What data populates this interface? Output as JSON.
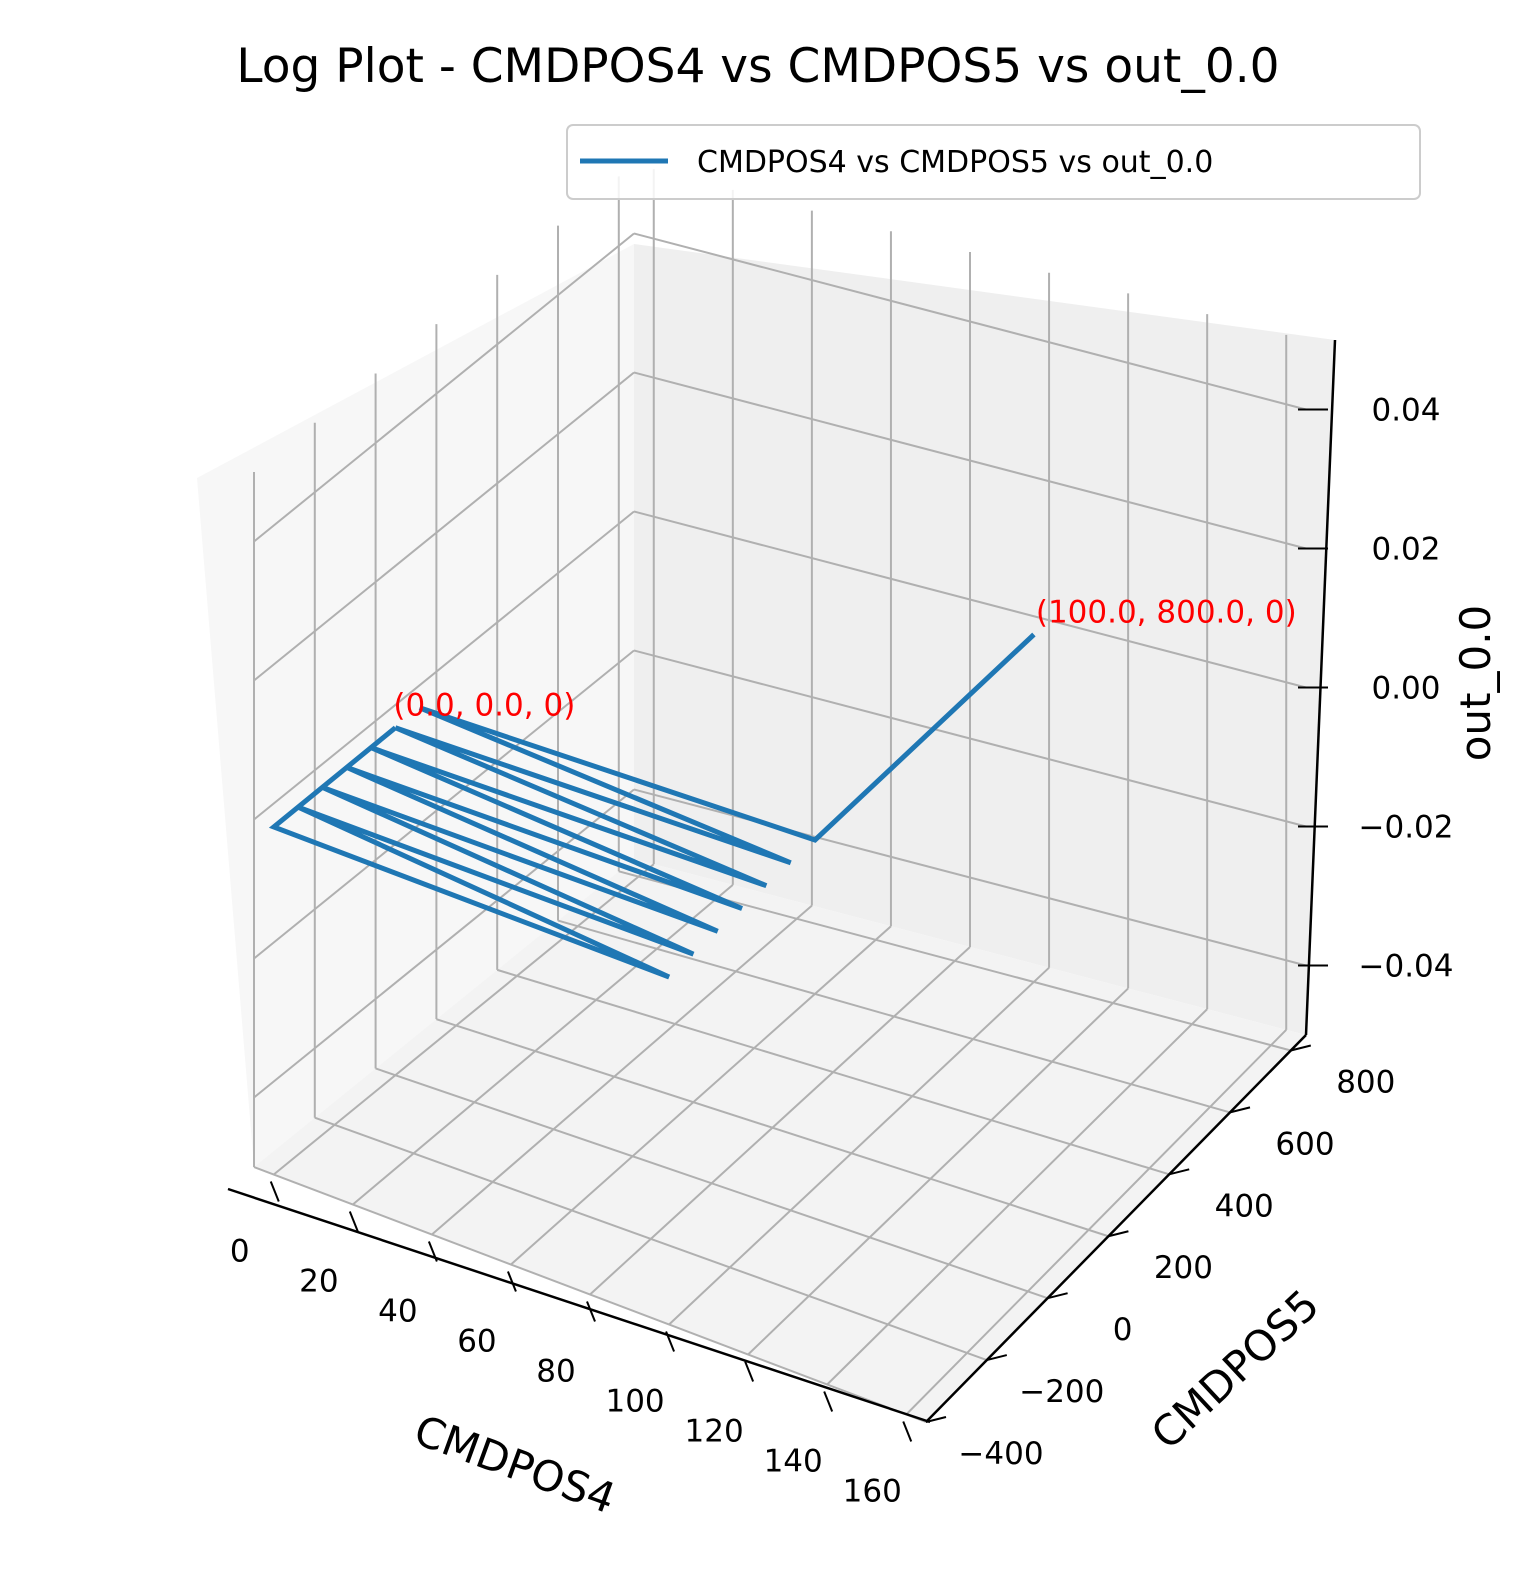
{
  "chart_data": {
    "type": "line3d",
    "title": "Log Plot - CMDPOS4 vs CMDPOS5 vs out_0.0",
    "xlabel": "CMDPOS4",
    "ylabel": "CMDPOS5",
    "zlabel": "out_0.0",
    "xlim": [
      -5,
      165
    ],
    "ylim": [
      -400,
      850
    ],
    "zlim": [
      -0.05,
      0.05
    ],
    "xticks": [
      0,
      20,
      40,
      60,
      80,
      100,
      120,
      140,
      160
    ],
    "xtick_labels": [
      "0",
      "20",
      "40",
      "60",
      "80",
      "100",
      "120",
      "140",
      "160"
    ],
    "yticks": [
      -400,
      -200,
      0,
      200,
      400,
      600,
      800
    ],
    "ytick_labels": [
      "−400",
      "−200",
      "0",
      "200",
      "400",
      "600",
      "800"
    ],
    "zticks": [
      -0.04,
      -0.02,
      0.0,
      0.02,
      0.04
    ],
    "ztick_labels": [
      "−0.04",
      "−0.02",
      "0.00",
      "0.02",
      "0.04"
    ],
    "grid": true,
    "legend_position": "top-right",
    "series": [
      {
        "name": "CMDPOS4 vs CMDPOS5 vs out_0.0",
        "color": "#1f77b4",
        "x": [
          0,
          0,
          100,
          0,
          100,
          0,
          100,
          0,
          100,
          0,
          100,
          0,
          100,
          0,
          100,
          100
        ],
        "y": [
          0,
          -400,
          -400,
          -320,
          -320,
          -240,
          -240,
          -160,
          -160,
          -80,
          -80,
          0,
          0,
          80,
          80,
          800
        ],
        "z": [
          0,
          0,
          0,
          0,
          0,
          0,
          0,
          0,
          0,
          0,
          0,
          0,
          0,
          0,
          0,
          0
        ]
      }
    ],
    "annotations": [
      {
        "text": "(0.0, 0.0, 0)",
        "color": "#ff0000",
        "at": "start"
      },
      {
        "text": "(100.0, 800.0, 0)",
        "color": "#ff0000",
        "at": "end"
      }
    ]
  }
}
